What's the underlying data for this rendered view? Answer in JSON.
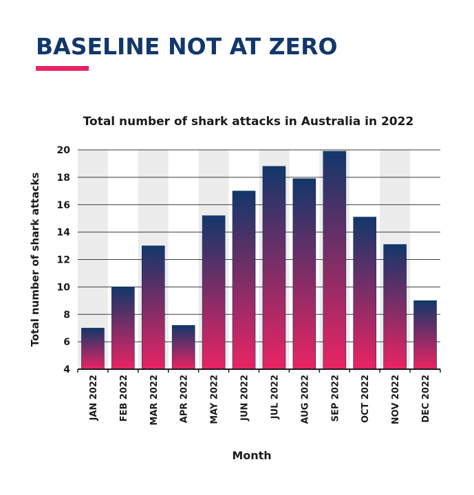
{
  "page": {
    "headline": "BASELINE NOT AT ZERO",
    "accent_color": "#ea2463",
    "headline_color": "#12376a"
  },
  "chart_data": {
    "type": "bar",
    "title": "Total number of shark attacks in Australia in 2022",
    "xlabel": "Month",
    "ylabel": "Total number of shark attacks",
    "categories": [
      "JAN 2022",
      "FEB 2022",
      "MAR 2022",
      "APR 2022",
      "MAY 2022",
      "JUN 2022",
      "JUL 2022",
      "AUG 2022",
      "SEP 2022",
      "OCT 2022",
      "NOV 2022",
      "DEC 2022"
    ],
    "values": [
      7,
      10,
      13,
      7.2,
      15.2,
      17,
      18.8,
      17.9,
      19.9,
      15.1,
      13.1,
      9
    ],
    "ylim": [
      4,
      20
    ],
    "yticks": [
      4,
      6,
      8,
      10,
      12,
      14,
      16,
      18,
      20
    ],
    "grid": "horizontal",
    "alternating_column_bands": true,
    "gradient": {
      "top": "#12376a",
      "bottom": "#ea2463"
    },
    "band_color": "#ececec"
  }
}
